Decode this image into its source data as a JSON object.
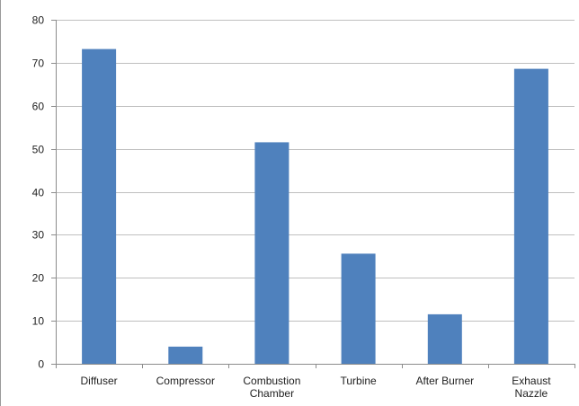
{
  "chart_data": {
    "type": "bar",
    "categories": [
      "Diffuser",
      "Compressor",
      "Combustion Chamber",
      "Turbine",
      "After Burner",
      "Exhaust Nazzle"
    ],
    "category_lines": [
      [
        "Diffuser"
      ],
      [
        "Compressor"
      ],
      [
        "Combustion",
        "Chamber"
      ],
      [
        "Turbine"
      ],
      [
        "After Burner"
      ],
      [
        "Exhaust",
        "Nazzle"
      ]
    ],
    "values": [
      73.2,
      4,
      51.5,
      25.6,
      11.5,
      68.6
    ],
    "title": "",
    "xlabel": "",
    "ylabel": "",
    "ylim": [
      0,
      80
    ],
    "yticks": [
      0,
      10,
      20,
      30,
      40,
      50,
      60,
      70,
      80
    ],
    "grid": true,
    "legend": "none",
    "colors": {
      "bar": "#4f81bd",
      "grid": "#bfbfbf",
      "axis": "#8c8c8c"
    }
  }
}
